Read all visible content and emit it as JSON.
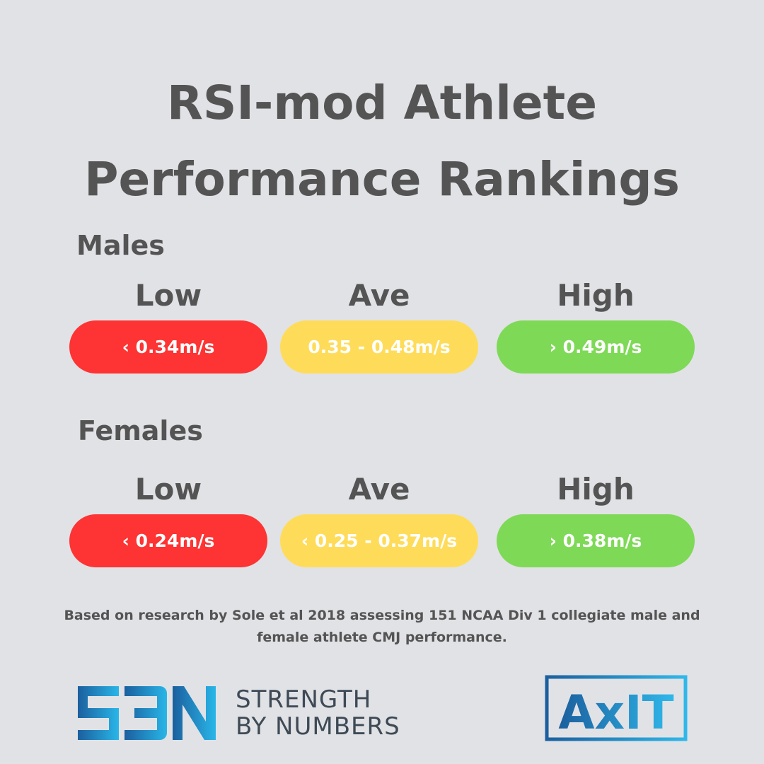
{
  "title": {
    "line1": "RSI-mod Athlete",
    "line2": "Performance Rankings"
  },
  "colors": {
    "low": "#fe3333",
    "ave": "#fedc5a",
    "high": "#7ed957",
    "text": "#545454",
    "background": "#e1e2e6",
    "logo_blue": "#1b75bc"
  },
  "males": {
    "label": "Males",
    "levels": [
      {
        "label": "Low",
        "range": "‹ 0.34m/s"
      },
      {
        "label": "Ave",
        "range": "0.35 - 0.48m/s"
      },
      {
        "label": "High",
        "range": "› 0.49m/s"
      }
    ]
  },
  "females": {
    "label": "Females",
    "levels": [
      {
        "label": "Low",
        "range": "‹ 0.24m/s"
      },
      {
        "label": "Ave",
        "range": "‹ 0.25 - 0.37m/s"
      },
      {
        "label": "High",
        "range": "› 0.38m/s"
      }
    ]
  },
  "note": {
    "line1": "Based on research by Sole et al 2018 assessing 151 NCAA Div 1 collegiate male and",
    "line2": "female athlete CMJ performance."
  },
  "logos": {
    "sbn_mark": "SBN",
    "sbn_line1": "STRENGTH",
    "sbn_line2": "BY NUMBERS",
    "axit": "AxIT"
  }
}
